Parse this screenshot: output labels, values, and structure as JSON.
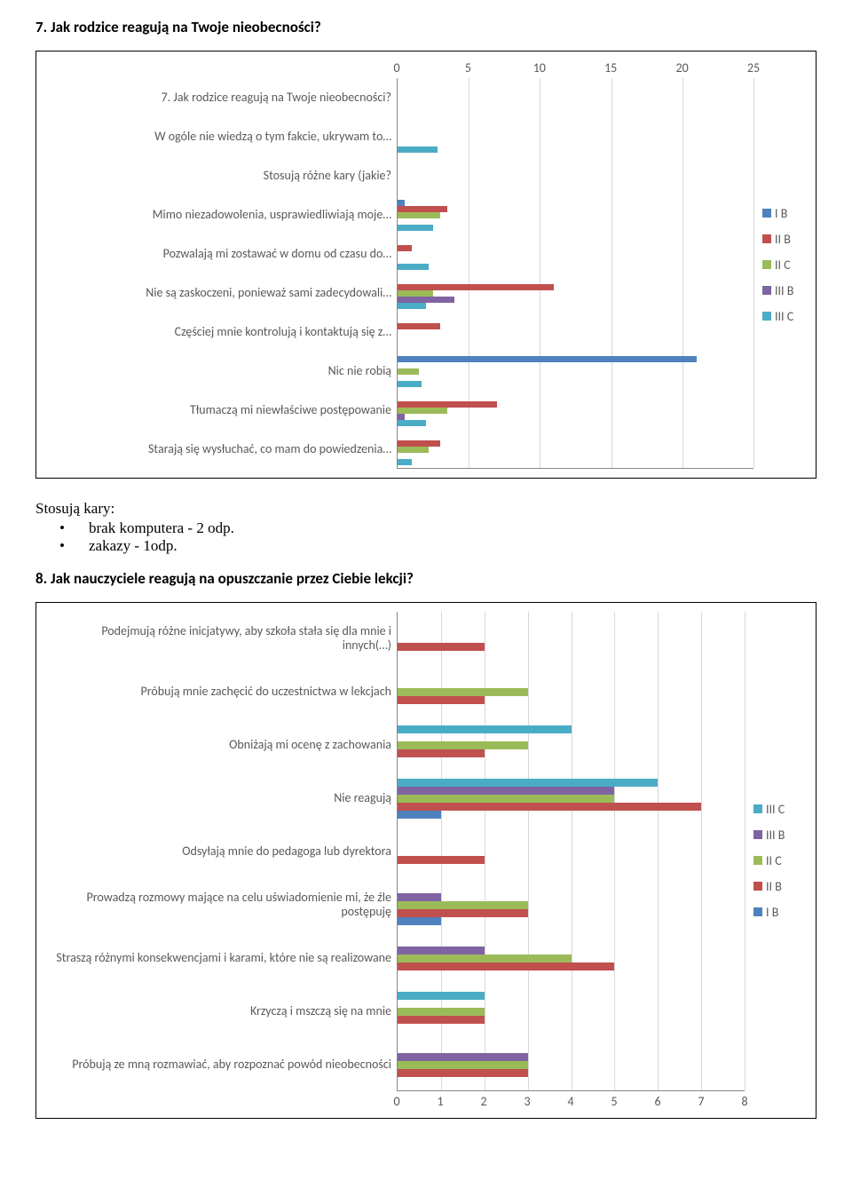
{
  "colors": {
    "IB": "#4f81bd",
    "IIB": "#c0504d",
    "IIC": "#9bbb59",
    "IIIB": "#8064a2",
    "IIIC": "#4bacc6",
    "grid": "#d9d9d9",
    "axis": "#868686",
    "text": "#595959"
  },
  "q7": {
    "heading": "7. Jak rodzice reagują na Twoje nieobecności?",
    "xmax": 25,
    "xtick_step": 5,
    "ticks": [
      0,
      5,
      10,
      15,
      20,
      25
    ],
    "series_order": [
      "IB",
      "IIB",
      "IIC",
      "IIIB",
      "IIIC"
    ],
    "legend": [
      {
        "key": "IB",
        "label": "I B"
      },
      {
        "key": "IIB",
        "label": "II B"
      },
      {
        "key": "IIC",
        "label": "II C"
      },
      {
        "key": "IIIB",
        "label": "III B"
      },
      {
        "key": "IIIC",
        "label": "III C"
      }
    ],
    "categories": [
      {
        "label": "7. Jak rodzice reagują na Twoje nieobecności?",
        "IB": 0,
        "IIB": 0,
        "IIC": 0,
        "IIIB": 0,
        "IIIC": 0
      },
      {
        "label": "W ogóle nie wiedzą o tym fakcie, ukrywam to…",
        "IB": 0,
        "IIB": 0,
        "IIC": 0,
        "IIIB": 0,
        "IIIC": 2.8
      },
      {
        "label": "Stosują różne kary (jakie?",
        "IB": 0,
        "IIB": 0,
        "IIC": 0,
        "IIIB": 0,
        "IIIC": 0
      },
      {
        "label": "Mimo niezadowolenia, usprawiedliwiają moje…",
        "IB": 0.5,
        "IIB": 3.5,
        "IIC": 3,
        "IIIB": 0,
        "IIIC": 2.5
      },
      {
        "label": "Pozwalają mi zostawać w domu od czasu do…",
        "IB": 0,
        "IIB": 1,
        "IIC": 0,
        "IIIB": 0,
        "IIIC": 2.2
      },
      {
        "label": "Nie są zaskoczeni, ponieważ sami zadecydowali…",
        "IB": 0,
        "IIB": 11,
        "IIC": 2.5,
        "IIIB": 4,
        "IIIC": 2
      },
      {
        "label": "Częściej mnie kontrolują i kontaktują się  z…",
        "IB": 0,
        "IIB": 3,
        "IIC": 0,
        "IIIB": 0,
        "IIIC": 0
      },
      {
        "label": "Nic nie robią",
        "IB": 21,
        "IIB": 0,
        "IIC": 1.5,
        "IIIB": 0,
        "IIIC": 1.7
      },
      {
        "label": "Tłumaczą mi niewłaściwe postępowanie",
        "IB": 0,
        "IIB": 7,
        "IIC": 3.5,
        "IIIB": 0.5,
        "IIIC": 2
      },
      {
        "label": "Starają się wysłuchać, co mam do powiedzenia…",
        "IB": 0,
        "IIB": 3,
        "IIC": 2.2,
        "IIIB": 0,
        "IIIC": 1
      }
    ]
  },
  "mid": {
    "title": "Stosują kary:",
    "items": [
      "brak komputera - 2 odp.",
      "zakazy - 1odp."
    ]
  },
  "q8": {
    "heading": "8. Jak nauczyciele reagują na opuszczanie przez Ciebie lekcji?",
    "xmax": 8,
    "xtick_step": 1,
    "ticks": [
      0,
      1,
      2,
      3,
      4,
      5,
      6,
      7,
      8
    ],
    "series_order": [
      "IIIC",
      "IIIB",
      "IIC",
      "IIB",
      "IB"
    ],
    "legend": [
      {
        "key": "IIIC",
        "label": "III C"
      },
      {
        "key": "IIIB",
        "label": "III B"
      },
      {
        "key": "IIC",
        "label": "II C"
      },
      {
        "key": "IIB",
        "label": "II B"
      },
      {
        "key": "IB",
        "label": "I B"
      }
    ],
    "categories": [
      {
        "label": "Podejmują różne inicjatywy, aby szkoła stała się dla mnie i innych(…)",
        "IIIC": 0,
        "IIIB": 0,
        "IIC": 0,
        "IIB": 2,
        "IB": 0
      },
      {
        "label": "Próbują mnie zachęcić do uczestnictwa w lekcjach",
        "IIIC": 0,
        "IIIB": 0,
        "IIC": 3,
        "IIB": 2,
        "IB": 0
      },
      {
        "label": "Obniżają mi ocenę z zachowania",
        "IIIC": 4,
        "IIIB": 0,
        "IIC": 3,
        "IIB": 2,
        "IB": 0
      },
      {
        "label": "Nie reagują",
        "IIIC": 6,
        "IIIB": 5,
        "IIC": 5,
        "IIB": 7,
        "IB": 1
      },
      {
        "label": "Odsyłają mnie do pedagoga lub dyrektora",
        "IIIC": 0,
        "IIIB": 0,
        "IIC": 0,
        "IIB": 2,
        "IB": 0
      },
      {
        "label": "Prowadzą rozmowy mające na celu uświadomienie mi, że źle postępuję",
        "IIIC": 0,
        "IIIB": 1,
        "IIC": 3,
        "IIB": 3,
        "IB": 1
      },
      {
        "label": "Straszą różnymi konsekwencjami i karami, które nie są realizowane",
        "IIIC": 0,
        "IIIB": 2,
        "IIC": 4,
        "IIB": 5,
        "IB": 0
      },
      {
        "label": "Krzyczą i mszczą się na mnie",
        "IIIC": 2,
        "IIIB": 0,
        "IIC": 2,
        "IIB": 2,
        "IB": 0
      },
      {
        "label": "Próbują ze mną rozmawiać, aby rozpoznać powód nieobecności",
        "IIIC": 0,
        "IIIB": 3,
        "IIC": 3,
        "IIB": 3,
        "IB": 0
      }
    ]
  }
}
